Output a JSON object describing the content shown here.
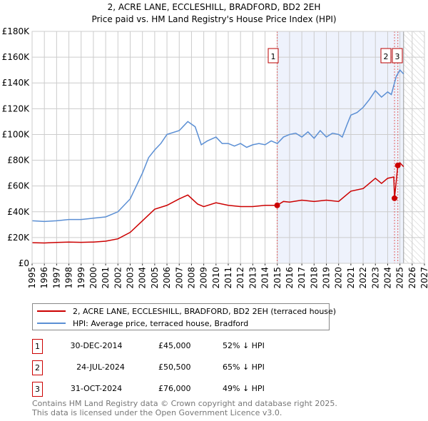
{
  "chart_data": {
    "type": "line",
    "title": "2, ACRE LANE, ECCLESHILL, BRADFORD, BD2 2EH",
    "subtitle": "Price paid vs. HM Land Registry's House Price Index (HPI)",
    "xlim": [
      1995,
      2027
    ],
    "ylim": [
      0,
      180000
    ],
    "x_ticks": [
      "1995",
      "1996",
      "1997",
      "1998",
      "1999",
      "2000",
      "2001",
      "2002",
      "2003",
      "2004",
      "2005",
      "2006",
      "2007",
      "2008",
      "2009",
      "2010",
      "2011",
      "2012",
      "2013",
      "2014",
      "2015",
      "2016",
      "2017",
      "2018",
      "2019",
      "2020",
      "2021",
      "2022",
      "2023",
      "2024",
      "2025",
      "2026",
      "2027"
    ],
    "y_ticks": [
      {
        "v": 0,
        "label": "£0"
      },
      {
        "v": 20000,
        "label": "£20K"
      },
      {
        "v": 40000,
        "label": "£40K"
      },
      {
        "v": 60000,
        "label": "£60K"
      },
      {
        "v": 80000,
        "label": "£80K"
      },
      {
        "v": 100000,
        "label": "£100K"
      },
      {
        "v": 120000,
        "label": "£120K"
      },
      {
        "v": 140000,
        "label": "£140K"
      },
      {
        "v": 160000,
        "label": "£160K"
      },
      {
        "v": 180000,
        "label": "£180K"
      }
    ],
    "series": [
      {
        "name": "2, ACRE LANE, ECCLESHILL, BRADFORD, BD2 2EH (terraced house)",
        "color": "#cc0000",
        "x": [
          1995,
          1996,
          1997,
          1998,
          1999,
          2000,
          2001,
          2002,
          2003,
          2004,
          2005,
          2006,
          2007,
          2007.7,
          2008.5,
          2009,
          2010,
          2011,
          2012,
          2013,
          2014,
          2014.99,
          2015.5,
          2016,
          2017,
          2018,
          2019,
          2020,
          2021,
          2022,
          2022.5,
          2023,
          2023.5,
          2024,
          2024.5,
          2024.56,
          2024.83,
          2025,
          2025.3
        ],
        "y": [
          16000,
          15800,
          16200,
          16500,
          16300,
          16500,
          17200,
          19000,
          24000,
          33000,
          42000,
          45000,
          50000,
          53000,
          46000,
          44000,
          47000,
          45000,
          44000,
          44000,
          45000,
          45000,
          48000,
          47500,
          49000,
          48000,
          49000,
          48000,
          56000,
          58000,
          62000,
          66000,
          62000,
          66000,
          67000,
          50500,
          76000,
          78000,
          75000
        ]
      },
      {
        "name": "HPI: Average price, terraced house, Bradford",
        "color": "#5b8fd4",
        "x": [
          1995,
          1996,
          1997,
          1998,
          1999,
          2000,
          2001,
          2002,
          2003,
          2004,
          2004.5,
          2005,
          2005.5,
          2006,
          2007,
          2007.7,
          2008.3,
          2008.8,
          2009.3,
          2010,
          2010.5,
          2011,
          2011.5,
          2012,
          2012.5,
          2013,
          2013.5,
          2014,
          2014.5,
          2015,
          2015.5,
          2016,
          2016.5,
          2017,
          2017.5,
          2018,
          2018.5,
          2019,
          2019.5,
          2020,
          2020.3,
          2020.7,
          2021,
          2021.5,
          2022,
          2022.5,
          2023,
          2023.5,
          2024,
          2024.3,
          2024.7,
          2025,
          2025.3
        ],
        "y": [
          33000,
          32500,
          33000,
          34000,
          34000,
          35000,
          36000,
          40000,
          50000,
          70000,
          82000,
          88000,
          93000,
          100000,
          103000,
          110000,
          106000,
          92000,
          95000,
          98000,
          93000,
          93000,
          91000,
          93000,
          90000,
          92000,
          93000,
          92000,
          95000,
          93000,
          98000,
          100000,
          101000,
          98000,
          102000,
          97000,
          103000,
          98000,
          101000,
          100000,
          98000,
          108000,
          115000,
          117000,
          121000,
          127000,
          134000,
          129000,
          133000,
          131000,
          145000,
          150000,
          147000
        ]
      }
    ],
    "sales": [
      {
        "label": "1",
        "x": 2014.99,
        "y": 45000
      },
      {
        "label": "2",
        "x": 2024.56,
        "y": 50500
      },
      {
        "label": "3",
        "x": 2024.83,
        "y": 76000
      }
    ],
    "shaded_from": 2014.99,
    "forecast_from": 2025.3
  },
  "legend": {
    "property": "2, ACRE LANE, ECCLESHILL, BRADFORD, BD2 2EH (terraced house)",
    "hpi": "HPI: Average price, terraced house, Bradford"
  },
  "sales_table": [
    {
      "num": "1",
      "date": "30-DEC-2014",
      "price": "£45,000",
      "hpi": "52% ↓ HPI"
    },
    {
      "num": "2",
      "date": "24-JUL-2024",
      "price": "£50,500",
      "hpi": "65% ↓ HPI"
    },
    {
      "num": "3",
      "date": "31-OCT-2024",
      "price": "£76,000",
      "hpi": "49% ↓ HPI"
    }
  ],
  "footer": {
    "line1": "Contains HM Land Registry data © Crown copyright and database right 2025.",
    "line2": "This data is licensed under the Open Government Licence v3.0."
  }
}
